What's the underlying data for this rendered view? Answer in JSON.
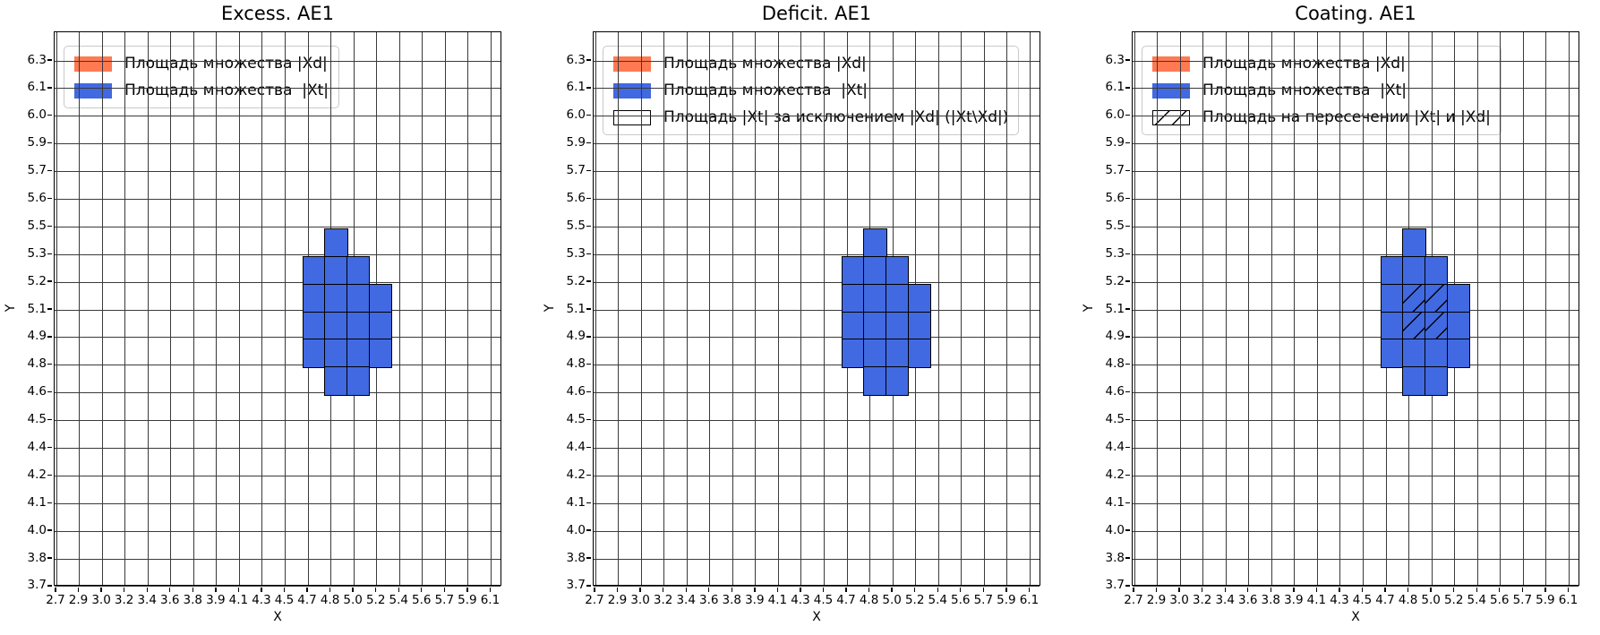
{
  "figure": {
    "background": "#ffffff"
  },
  "colors": {
    "xd_fill": "#ff7a52",
    "xt_fill": "#4169e1",
    "cell_border": "#000000",
    "grid": "#3a3a3a",
    "legend_border": "#c9c9c9",
    "legend_background": "rgba(255,255,255,0.85)"
  },
  "axes": {
    "x_label": "X",
    "y_label": "Y",
    "x_ticks": [
      "2.7",
      "2.9",
      "3.0",
      "3.2",
      "3.4",
      "3.6",
      "3.8",
      "3.9",
      "4.1",
      "4.3",
      "4.5",
      "4.7",
      "4.8",
      "5.0",
      "5.2",
      "5.4",
      "5.6",
      "5.7",
      "5.9",
      "6.1"
    ],
    "y_ticks": [
      "6.3",
      "6.1",
      "6.0",
      "5.9",
      "5.7",
      "5.6",
      "5.5",
      "5.3",
      "5.2",
      "5.1",
      "4.9",
      "4.8",
      "4.6",
      "4.5",
      "4.4",
      "4.2",
      "4.1",
      "4.0",
      "3.8",
      "3.7"
    ]
  },
  "cluster": {
    "cells": [
      [
        0,
        1
      ],
      [
        1,
        0
      ],
      [
        1,
        1
      ],
      [
        1,
        2
      ],
      [
        2,
        0
      ],
      [
        2,
        1
      ],
      [
        2,
        2
      ],
      [
        2,
        3
      ],
      [
        3,
        0
      ],
      [
        3,
        1
      ],
      [
        3,
        2
      ],
      [
        3,
        3
      ],
      [
        4,
        0
      ],
      [
        4,
        1
      ],
      [
        4,
        2
      ],
      [
        4,
        3
      ],
      [
        5,
        1
      ],
      [
        5,
        2
      ]
    ]
  },
  "subplots": [
    {
      "title": "Excess. AE1",
      "legend": [
        {
          "swatch": "xd",
          "label": "Площадь множества |Xd|"
        },
        {
          "swatch": "xt",
          "label": "Площадь множества  |Xt|"
        }
      ],
      "hatched_cells": []
    },
    {
      "title": "Deficit. AE1",
      "legend": [
        {
          "swatch": "xd",
          "label": "Площадь множества |Xd|"
        },
        {
          "swatch": "xt",
          "label": "Площадь множества  |Xt|"
        },
        {
          "swatch": "outline",
          "label": "Площадь |Xt| за исключением |Xd| (|Xt\\Xd|)"
        }
      ],
      "hatched_cells": []
    },
    {
      "title": "Coating. AE1",
      "legend": [
        {
          "swatch": "xd",
          "label": "Площадь множества |Xd|"
        },
        {
          "swatch": "xt",
          "label": "Площадь множества  |Xt|"
        },
        {
          "swatch": "hatch",
          "label": "Площадь на пересечении |Xt| и |Xd|"
        }
      ],
      "hatched_cells": [
        [
          2,
          1
        ],
        [
          2,
          2
        ],
        [
          3,
          1
        ],
        [
          3,
          2
        ]
      ]
    }
  ],
  "chart_data": {
    "type": "heatmap",
    "subplot_titles": [
      "Excess. AE1",
      "Deficit. AE1",
      "Coating. AE1"
    ],
    "xlabel": "X",
    "ylabel": "Y",
    "x_tick_labels": [
      "2.7",
      "2.9",
      "3.0",
      "3.2",
      "3.4",
      "3.6",
      "3.8",
      "3.9",
      "4.1",
      "4.3",
      "4.5",
      "4.7",
      "4.8",
      "5.0",
      "5.2",
      "5.4",
      "5.6",
      "5.7",
      "5.9",
      "6.1"
    ],
    "y_tick_labels": [
      "6.3",
      "6.1",
      "6.0",
      "5.9",
      "5.7",
      "5.6",
      "5.5",
      "5.3",
      "5.2",
      "5.1",
      "4.9",
      "4.8",
      "4.6",
      "4.5",
      "4.4",
      "4.2",
      "4.1",
      "4.0",
      "3.8",
      "3.7"
    ],
    "grid": true,
    "legend_position": "upper left",
    "series": [
      {
        "name": "Площадь множества |Xt|",
        "color": "#4169e1",
        "cells_rowcol": [
          [
            0,
            1
          ],
          [
            1,
            0
          ],
          [
            1,
            1
          ],
          [
            1,
            2
          ],
          [
            2,
            0
          ],
          [
            2,
            1
          ],
          [
            2,
            2
          ],
          [
            2,
            3
          ],
          [
            3,
            0
          ],
          [
            3,
            1
          ],
          [
            3,
            2
          ],
          [
            3,
            3
          ],
          [
            4,
            0
          ],
          [
            4,
            1
          ],
          [
            4,
            2
          ],
          [
            4,
            3
          ],
          [
            5,
            1
          ],
          [
            5,
            2
          ]
        ],
        "cell_count": 18
      },
      {
        "name": "Площадь на пересечении |Xt| и |Xd|",
        "hatch": "/",
        "shown_in": "Coating. AE1",
        "cells_rowcol": [
          [
            2,
            1
          ],
          [
            2,
            2
          ],
          [
            3,
            1
          ],
          [
            3,
            2
          ]
        ],
        "cell_count": 4
      }
    ],
    "cell_size_data_units": [
      0.17,
      0.137
    ],
    "cluster_x_edges": [
      4.63,
      4.8,
      4.97,
      5.14,
      5.31
    ],
    "cluster_y_edges_top_to_bottom": [
      5.47,
      5.33,
      5.19,
      5.06,
      4.92,
      4.78,
      4.65
    ],
    "xlim": [
      2.69,
      6.25
    ],
    "ylim": [
      3.7,
      6.45
    ]
  }
}
